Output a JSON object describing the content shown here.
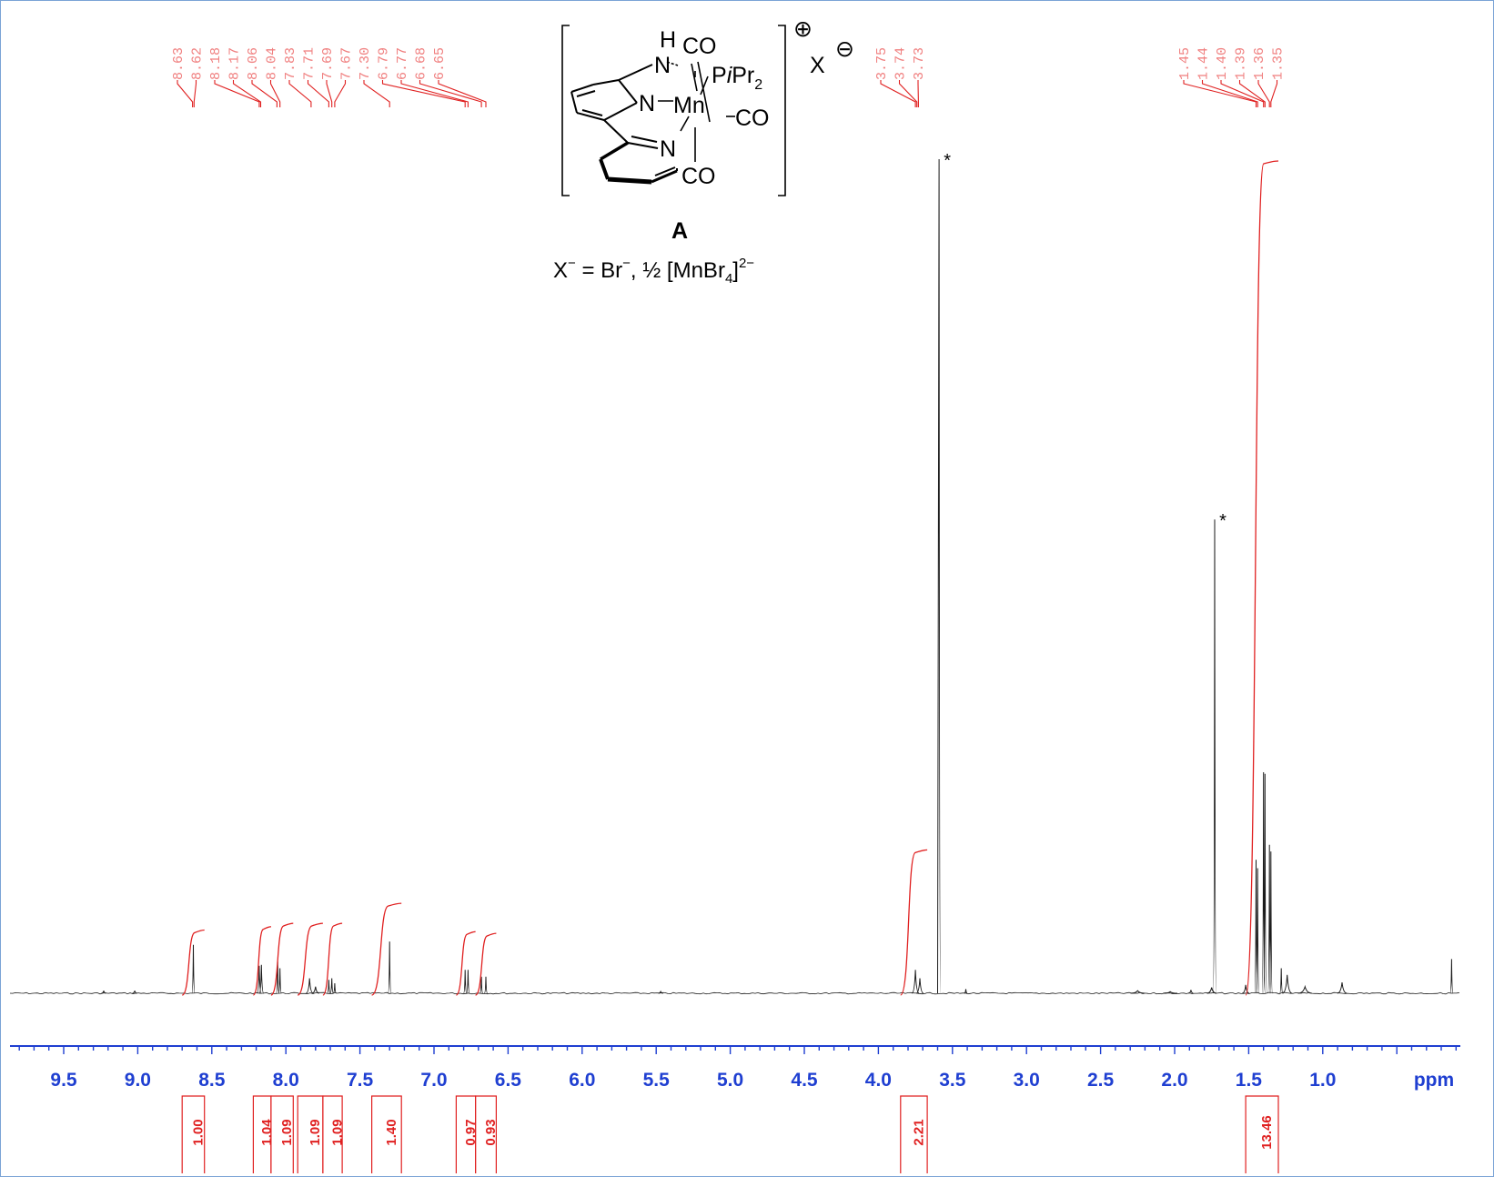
{
  "chart_data": {
    "type": "line",
    "x_axis": {
      "label": "ppm",
      "range": [
        10.0,
        0.0
      ],
      "reversed": true,
      "ticks": [
        "9.5",
        "9.0",
        "8.5",
        "8.0",
        "7.5",
        "7.0",
        "6.5",
        "6.0",
        "5.5",
        "5.0",
        "4.5",
        "4.0",
        "3.5",
        "3.0",
        "2.5",
        "2.0",
        "1.5",
        "1.0"
      ]
    },
    "peak_labels": [
      {
        "group": 1,
        "labels": [
          "8.63",
          "8.62",
          "8.18",
          "8.17",
          "8.06",
          "8.04",
          "7.83",
          "7.71",
          "7.69",
          "7.67",
          "7.30",
          "6.79",
          "6.77",
          "6.68",
          "6.65"
        ],
        "positions": [
          8.63,
          8.62,
          8.18,
          8.17,
          8.06,
          8.04,
          7.83,
          7.71,
          7.69,
          7.67,
          7.3,
          6.79,
          6.77,
          6.68,
          6.65
        ]
      },
      {
        "group": 2,
        "labels": [
          "3.75",
          "3.74",
          "3.73"
        ],
        "positions": [
          3.75,
          3.74,
          3.73
        ]
      },
      {
        "group": 3,
        "labels": [
          "1.45",
          "1.44",
          "1.40",
          "1.39",
          "1.36",
          "1.35"
        ],
        "positions": [
          1.45,
          1.44,
          1.4,
          1.39,
          1.36,
          1.35
        ]
      }
    ],
    "integrals": [
      {
        "from": 8.7,
        "to": 8.55,
        "value": "1.00",
        "curve_height": 0.078
      },
      {
        "from": 8.22,
        "to": 8.1,
        "value": "1.04",
        "curve_height": 0.082
      },
      {
        "from": 8.1,
        "to": 7.95,
        "value": "1.09",
        "curve_height": 0.086
      },
      {
        "from": 7.92,
        "to": 7.75,
        "value": "1.09",
        "curve_height": 0.086
      },
      {
        "from": 7.75,
        "to": 7.62,
        "value": "1.09",
        "curve_height": 0.086
      },
      {
        "from": 7.42,
        "to": 7.22,
        "value": "1.40",
        "curve_height": 0.11
      },
      {
        "from": 6.85,
        "to": 6.72,
        "value": "0.97",
        "curve_height": 0.076
      },
      {
        "from": 6.72,
        "to": 6.58,
        "value": "0.93",
        "curve_height": 0.074
      },
      {
        "from": 3.85,
        "to": 3.67,
        "value": "2.21",
        "curve_height": 0.174
      },
      {
        "from": 1.52,
        "to": 1.3,
        "value": "13.46",
        "curve_height": 1.0
      }
    ],
    "peaks": [
      {
        "ppm": 9.23,
        "height": 0.003,
        "width": 0.02
      },
      {
        "ppm": 9.02,
        "height": 0.003,
        "width": 0.02
      },
      {
        "ppm": 8.625,
        "height": 0.058,
        "width": 0.012
      },
      {
        "ppm": 8.18,
        "height": 0.033,
        "width": 0.018
      },
      {
        "ppm": 8.165,
        "height": 0.034,
        "width": 0.018
      },
      {
        "ppm": 8.055,
        "height": 0.038,
        "width": 0.012
      },
      {
        "ppm": 8.04,
        "height": 0.03,
        "width": 0.012
      },
      {
        "ppm": 7.84,
        "height": 0.018,
        "width": 0.03
      },
      {
        "ppm": 7.8,
        "height": 0.008,
        "width": 0.03
      },
      {
        "ppm": 7.71,
        "height": 0.016,
        "width": 0.013
      },
      {
        "ppm": 7.69,
        "height": 0.018,
        "width": 0.013
      },
      {
        "ppm": 7.67,
        "height": 0.012,
        "width": 0.013
      },
      {
        "ppm": 7.3,
        "height": 0.062,
        "width": 0.012
      },
      {
        "ppm": 6.79,
        "height": 0.028,
        "width": 0.012
      },
      {
        "ppm": 6.77,
        "height": 0.028,
        "width": 0.012
      },
      {
        "ppm": 6.68,
        "height": 0.02,
        "width": 0.012
      },
      {
        "ppm": 6.65,
        "height": 0.02,
        "width": 0.012
      },
      {
        "ppm": 5.47,
        "height": 0.002,
        "width": 0.02
      },
      {
        "ppm": 3.75,
        "height": 0.028,
        "width": 0.03
      },
      {
        "ppm": 3.72,
        "height": 0.018,
        "width": 0.03
      },
      {
        "ppm": 3.59,
        "height": 1.0,
        "width": 0.012
      },
      {
        "ppm": 3.41,
        "height": 0.005,
        "width": 0.01
      },
      {
        "ppm": 2.25,
        "height": 0.003,
        "width": 0.06
      },
      {
        "ppm": 2.03,
        "height": 0.002,
        "width": 0.06
      },
      {
        "ppm": 1.89,
        "height": 0.004,
        "width": 0.02
      },
      {
        "ppm": 1.75,
        "height": 0.007,
        "width": 0.04
      },
      {
        "ppm": 1.73,
        "height": 0.568,
        "width": 0.012
      },
      {
        "ppm": 1.52,
        "height": 0.01,
        "width": 0.03
      },
      {
        "ppm": 1.45,
        "height": 0.16,
        "width": 0.008
      },
      {
        "ppm": 1.44,
        "height": 0.15,
        "width": 0.008
      },
      {
        "ppm": 1.4,
        "height": 0.265,
        "width": 0.008
      },
      {
        "ppm": 1.39,
        "height": 0.263,
        "width": 0.008
      },
      {
        "ppm": 1.36,
        "height": 0.178,
        "width": 0.008
      },
      {
        "ppm": 1.35,
        "height": 0.17,
        "width": 0.008
      },
      {
        "ppm": 1.28,
        "height": 0.03,
        "width": 0.01
      },
      {
        "ppm": 1.24,
        "height": 0.022,
        "width": 0.04
      },
      {
        "ppm": 1.12,
        "height": 0.008,
        "width": 0.06
      },
      {
        "ppm": 0.87,
        "height": 0.013,
        "width": 0.04
      },
      {
        "ppm": 0.13,
        "height": 0.041,
        "width": 0.007
      }
    ],
    "annotations": [
      {
        "text": "*",
        "near_ppm": 3.59
      },
      {
        "text": "*",
        "near_ppm": 1.73
      }
    ],
    "grid": false,
    "colors": {
      "axis": "#1f3fd1",
      "spectrum": "#1a1a1a",
      "integral": "#e02020",
      "peak_label": "#f08080",
      "frame": "#7aa3d6"
    }
  },
  "structure": {
    "compound_label": "A",
    "atom_N_amine": "N",
    "atom_H": "H",
    "atom_N_pyridine_1": "N",
    "atom_N_pyridine_2": "N",
    "metal": "Mn",
    "co_top": "CO",
    "co_right": "CO",
    "co_bottom": "CO",
    "phosphine_prefix": "P",
    "phosphine_italic": "i",
    "phosphine_pr": "Pr",
    "phosphine_sub": "2",
    "charge_plus": "⊕",
    "anion": "X",
    "anion_charge": "⊖",
    "caption_prefix": "X",
    "caption_sup1": "−",
    "caption_mid": "  = Br",
    "caption_sup2": "−",
    "caption_half": ", ½ [MnBr",
    "caption_sub": "4",
    "caption_close": "]",
    "caption_sup3": "2−"
  }
}
